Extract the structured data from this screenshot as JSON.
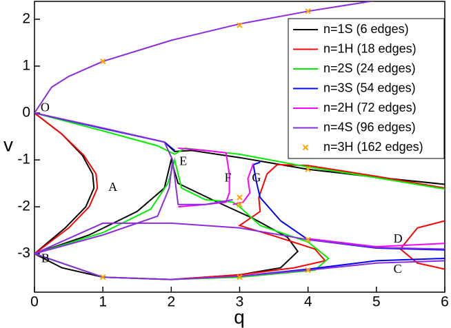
{
  "chart_data": {
    "type": "line",
    "x_label": "q",
    "y_label": "v",
    "xlim": [
      0,
      6
    ],
    "ylim": [
      -3.82,
      2.38
    ],
    "xticks": [
      0,
      1,
      2,
      3,
      4,
      5,
      6
    ],
    "yticks": [
      -3,
      -2,
      -1,
      0,
      1,
      2
    ],
    "legend": "top-right",
    "annotations": [
      "O",
      "A",
      "B",
      "C",
      "D",
      "E",
      "F",
      "G"
    ],
    "series": [
      {
        "name": "n=1S (6 edges)",
        "color": "#000000",
        "x": [
          0,
          0.4,
          0.7,
          0.85,
          0.87,
          0.75,
          0.45,
          0,
          null,
          0,
          1,
          1.9,
          2.05,
          2.3,
          3,
          4,
          5,
          6,
          null,
          0,
          0.8,
          1.5,
          1.9,
          2.0,
          2.1,
          2.6,
          3.2,
          3.7,
          3.85,
          3.6,
          3,
          2,
          1,
          0.4,
          0
        ],
        "values": [
          0,
          -0.45,
          -0.9,
          -1.3,
          -1.6,
          -2.0,
          -2.45,
          -3,
          null,
          0,
          -0.32,
          -0.62,
          -0.82,
          -0.8,
          -0.95,
          -1.2,
          -1.37,
          -1.52,
          null,
          -3,
          -2.6,
          -2.1,
          -1.6,
          -1.0,
          -1.5,
          -1.85,
          -2.25,
          -2.65,
          -2.95,
          -3.3,
          -3.45,
          -3.55,
          -3.5,
          -3.3,
          -3
        ]
      },
      {
        "name": "n=1H (18 edges)",
        "color": "#ff0000",
        "x": [
          0,
          0.4,
          0.72,
          0.9,
          0.92,
          0.8,
          0.5,
          0,
          null,
          0,
          1,
          2,
          3,
          3.8,
          4.25,
          4.1,
          3.5,
          3,
          3.3,
          3.28,
          3.4,
          3.55,
          4,
          5,
          6,
          null,
          6,
          5.6,
          5.35,
          5.6,
          6
        ],
        "values": [
          0,
          -0.45,
          -0.9,
          -1.3,
          -1.6,
          -2.0,
          -2.45,
          -3,
          null,
          -3,
          -3.5,
          -3.55,
          -3.45,
          -3.3,
          -3.15,
          -2.9,
          -2.62,
          -2.4,
          -2.1,
          -1.8,
          -1.3,
          -1.1,
          -1.12,
          -1.35,
          -1.6,
          null,
          -2.3,
          -2.45,
          -2.9,
          -3.2,
          -3.33
        ]
      },
      {
        "name": "n=2S (24 edges)",
        "color": "#00ee00",
        "x": [
          0,
          1,
          1.8,
          2.05,
          2.2,
          3,
          4,
          5,
          6,
          null,
          0,
          1,
          1.7,
          1.95,
          2.05,
          2.15,
          2.5,
          2.9,
          3.0,
          3.3,
          4,
          4.3,
          4.1,
          3,
          2,
          1,
          0
        ],
        "values": [
          0,
          -0.38,
          -0.7,
          -0.88,
          -0.75,
          -0.88,
          -1.15,
          -1.38,
          -1.62,
          null,
          -3,
          -2.55,
          -2.05,
          -1.5,
          -1.0,
          -1.6,
          -1.85,
          -1.9,
          -2.0,
          -2.4,
          -2.75,
          -3.1,
          -3.35,
          -3.5,
          -3.55,
          -3.5,
          -3
        ]
      },
      {
        "name": "n=3S (54 edges)",
        "color": "#0000ff",
        "x": [
          0,
          1,
          1.9,
          2.05,
          null,
          3.3,
          3.2,
          3.25,
          3.3,
          3.6,
          4,
          5,
          6,
          null,
          3,
          4,
          5,
          6
        ],
        "values": [
          0,
          -0.33,
          -0.62,
          -0.8,
          null,
          -1.05,
          -1.1,
          -1.5,
          -1.8,
          -2.3,
          -2.7,
          -2.88,
          -2.92,
          null,
          -3.48,
          -3.33,
          -3.15,
          -3.1
        ]
      },
      {
        "name": "n=2H (72 edges)",
        "color": "#ff00ff",
        "x": [
          2.1,
          2.5,
          2.8,
          2.85,
          2.85,
          2.8,
          2.5,
          2.1,
          null,
          3.2,
          3.12,
          3.15,
          3.05,
          2.9,
          null,
          4,
          5,
          6
        ],
        "values": [
          -0.75,
          -0.8,
          -0.85,
          -1.3,
          -1.7,
          -1.9,
          -1.95,
          -2.0,
          null,
          -1.08,
          -1.4,
          -1.7,
          -1.9,
          -1.95,
          null,
          -2.68,
          -2.85,
          -2.78
        ]
      },
      {
        "name": "n=4S (96 edges)",
        "color": "#8a2be2",
        "x": [
          0,
          0.25,
          0.5,
          1,
          2,
          3,
          4,
          5,
          null,
          0,
          1,
          1.9,
          2.02,
          null,
          0,
          1,
          1.8,
          1.97,
          2.02,
          2.1,
          2.5,
          2.9,
          null,
          0,
          1,
          2,
          3,
          4,
          5,
          6,
          null,
          0,
          1,
          2,
          3,
          4,
          5,
          6
        ],
        "values": [
          0,
          0.55,
          0.78,
          1.1,
          1.55,
          1.9,
          2.17,
          2.4,
          null,
          0,
          -0.32,
          -0.62,
          -1.0,
          null,
          -3,
          -2.6,
          -2.2,
          -1.6,
          -1.0,
          -1.95,
          -1.95,
          -1.85,
          null,
          -3,
          -3.5,
          -3.55,
          -3.48,
          -3.35,
          -3.2,
          -3.15,
          null,
          -3,
          -2.35,
          -2.35,
          -2.45,
          -2.7,
          -2.87,
          -2.9
        ]
      },
      {
        "name": "n=3H (162 edges)",
        "color": "#ffa500",
        "style": "scatter",
        "x": [
          1,
          3,
          4,
          4,
          3,
          3,
          4,
          4,
          3,
          1
        ],
        "values": [
          1.1,
          1.87,
          2.17,
          -1.2,
          -1.8,
          -1.95,
          -2.7,
          -3.35,
          -3.5,
          -3.5
        ]
      }
    ]
  }
}
